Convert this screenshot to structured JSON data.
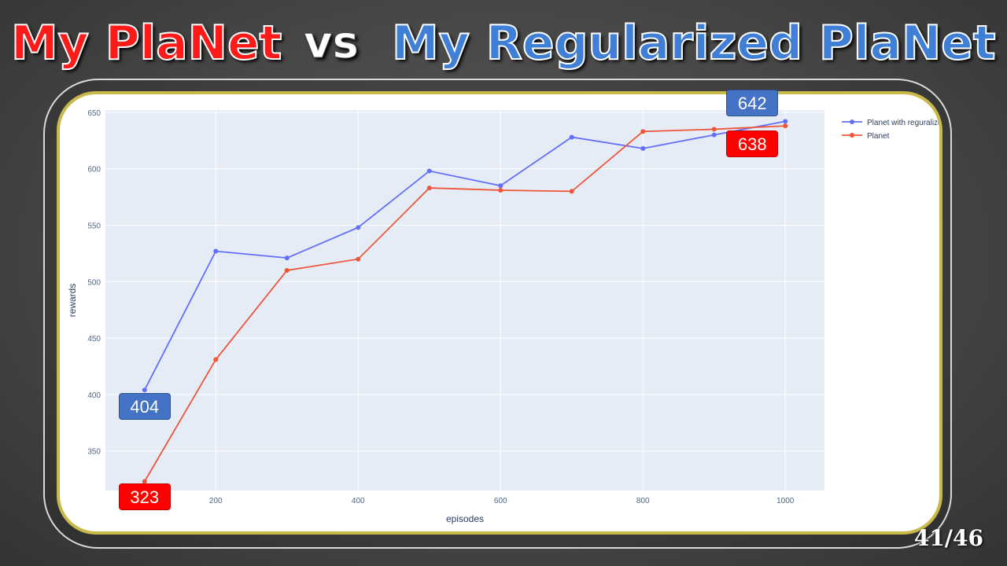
{
  "slide": {
    "title_left": "My PlaNet",
    "title_vs": "vs",
    "title_right": "My Regularized PlaNet",
    "page_number": "41/46"
  },
  "colors": {
    "regularized": "#636efa",
    "planet": "#ef553b",
    "plot_bg": "#e5ecf6",
    "callout_blue": "#4472c4",
    "callout_red": "#ff0000"
  },
  "chart_data": {
    "type": "line",
    "xlabel": "episodes",
    "ylabel": "rewards",
    "x": [
      100,
      200,
      300,
      400,
      500,
      600,
      700,
      800,
      900,
      1000
    ],
    "xlim": [
      45,
      1055
    ],
    "ylim": [
      315,
      652
    ],
    "xticks": [
      200,
      400,
      600,
      800,
      1000
    ],
    "yticks": [
      350,
      400,
      450,
      500,
      550,
      600,
      650
    ],
    "grid": true,
    "legend_position": "top-right",
    "series": [
      {
        "name": "Planet with reguralize",
        "values": [
          404,
          527,
          521,
          548,
          598,
          585,
          628,
          618,
          630,
          642
        ]
      },
      {
        "name": "Planet",
        "values": [
          323,
          431,
          510,
          520,
          583,
          581,
          580,
          633,
          635,
          638
        ]
      }
    ],
    "callouts": [
      {
        "label": "404",
        "series": 0,
        "point": 0
      },
      {
        "label": "323",
        "series": 1,
        "point": 0
      },
      {
        "label": "642",
        "series": 0,
        "point": 9
      },
      {
        "label": "638",
        "series": 1,
        "point": 9
      }
    ]
  }
}
